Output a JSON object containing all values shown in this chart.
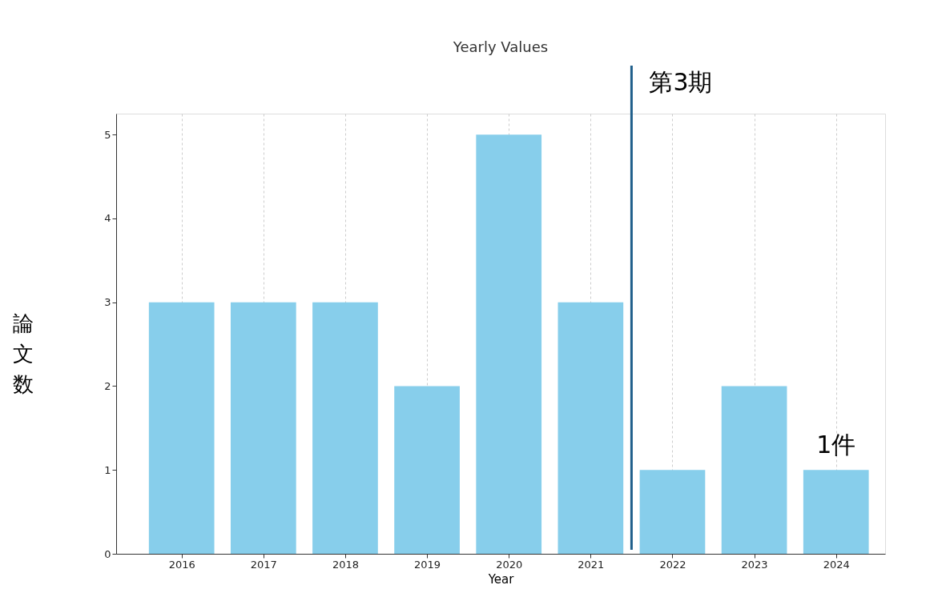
{
  "chart_data": {
    "type": "bar",
    "title": "Yearly Values",
    "xlabel": "Year",
    "ylabel": "論文数",
    "x": [
      2016,
      2017,
      2018,
      2019,
      2020,
      2021,
      2022,
      2023,
      2024
    ],
    "values": [
      3,
      3,
      3,
      2,
      5,
      3,
      1,
      2,
      1
    ],
    "color": "#87ceeb",
    "xlim": [
      2015.2,
      2024.6
    ],
    "xticks": [
      2016,
      2017,
      2018,
      2019,
      2020,
      2021,
      2022,
      2023,
      2024
    ],
    "ylim": [
      0,
      5.25
    ],
    "yticks": [
      0,
      1,
      2,
      3,
      4,
      5
    ],
    "grid": "x",
    "ref_lines": [
      {
        "axis": "x",
        "value": 2021.5,
        "label": "第3期",
        "color": "#1f5f8b"
      }
    ],
    "annotations": [
      {
        "text": "1件",
        "x": 2024,
        "y": 1
      }
    ]
  }
}
